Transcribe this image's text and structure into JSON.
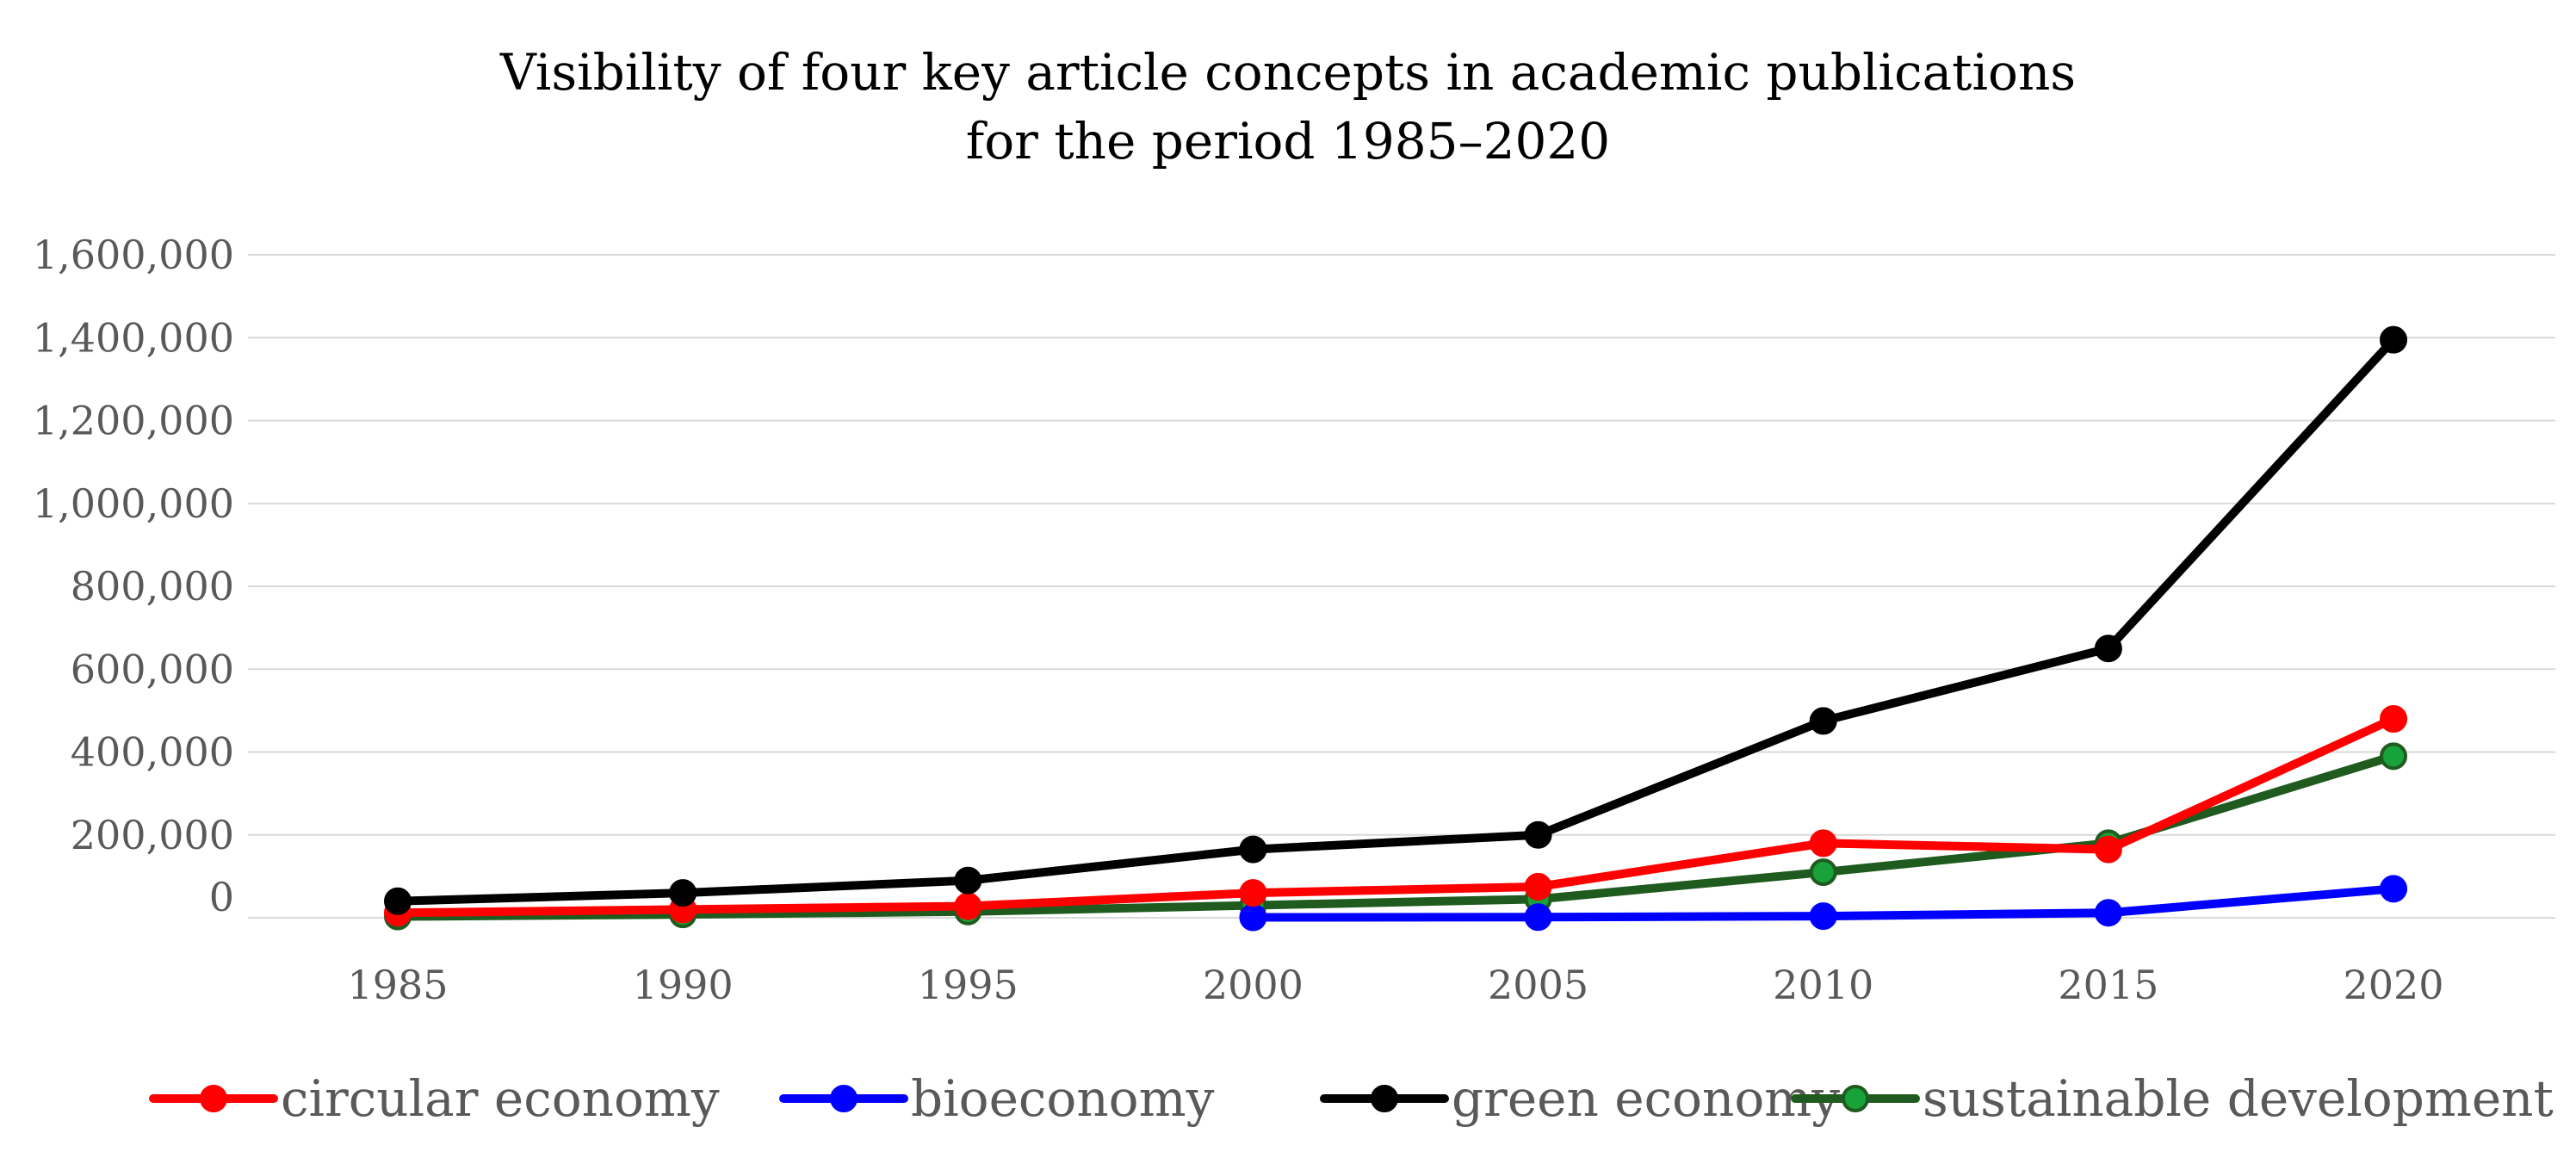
{
  "chart_data": {
    "type": "line",
    "title": "Visibility of four key article concepts in academic publications",
    "subtitle": "for the period 1985–2020",
    "xlabel": "",
    "ylabel": "",
    "ylim": [
      0,
      1600000
    ],
    "y_ticks": [
      0,
      200000,
      400000,
      600000,
      800000,
      1000000,
      1200000,
      1400000,
      1600000
    ],
    "y_tick_labels": [
      "0",
      "200,000",
      "400,000",
      "600,000",
      "800,000",
      "1,000,000",
      "1,200,000",
      "1,400,000",
      "1,600,000"
    ],
    "grid": true,
    "legend_position": "bottom",
    "categories": [
      "1985",
      "1990",
      "1995",
      "2000",
      "2005",
      "2010",
      "2015",
      "2020"
    ],
    "series": [
      {
        "name": "circular economy",
        "line_color": "#ff0000",
        "marker_fill": "#ff0000",
        "marker_stroke": "#ff0000",
        "values": [
          12000,
          20000,
          28000,
          60000,
          75000,
          180000,
          165000,
          480000
        ]
      },
      {
        "name": "bioeconomy",
        "line_color": "#0000ff",
        "marker_fill": "#0000ff",
        "marker_stroke": "#0000ff",
        "values": [
          null,
          null,
          null,
          1000,
          1500,
          4000,
          12000,
          70000
        ]
      },
      {
        "name": "green economy",
        "line_color": "#000000",
        "marker_fill": "#000000",
        "marker_stroke": "#000000",
        "values": [
          40000,
          60000,
          90000,
          165000,
          200000,
          475000,
          650000,
          1395000
        ]
      },
      {
        "name": "sustainable development",
        "line_color": "#1f5b1f",
        "marker_fill": "#17a33a",
        "marker_stroke": "#1f5b1f",
        "values": [
          3000,
          8000,
          15000,
          30000,
          45000,
          110000,
          180000,
          390000
        ]
      }
    ]
  }
}
